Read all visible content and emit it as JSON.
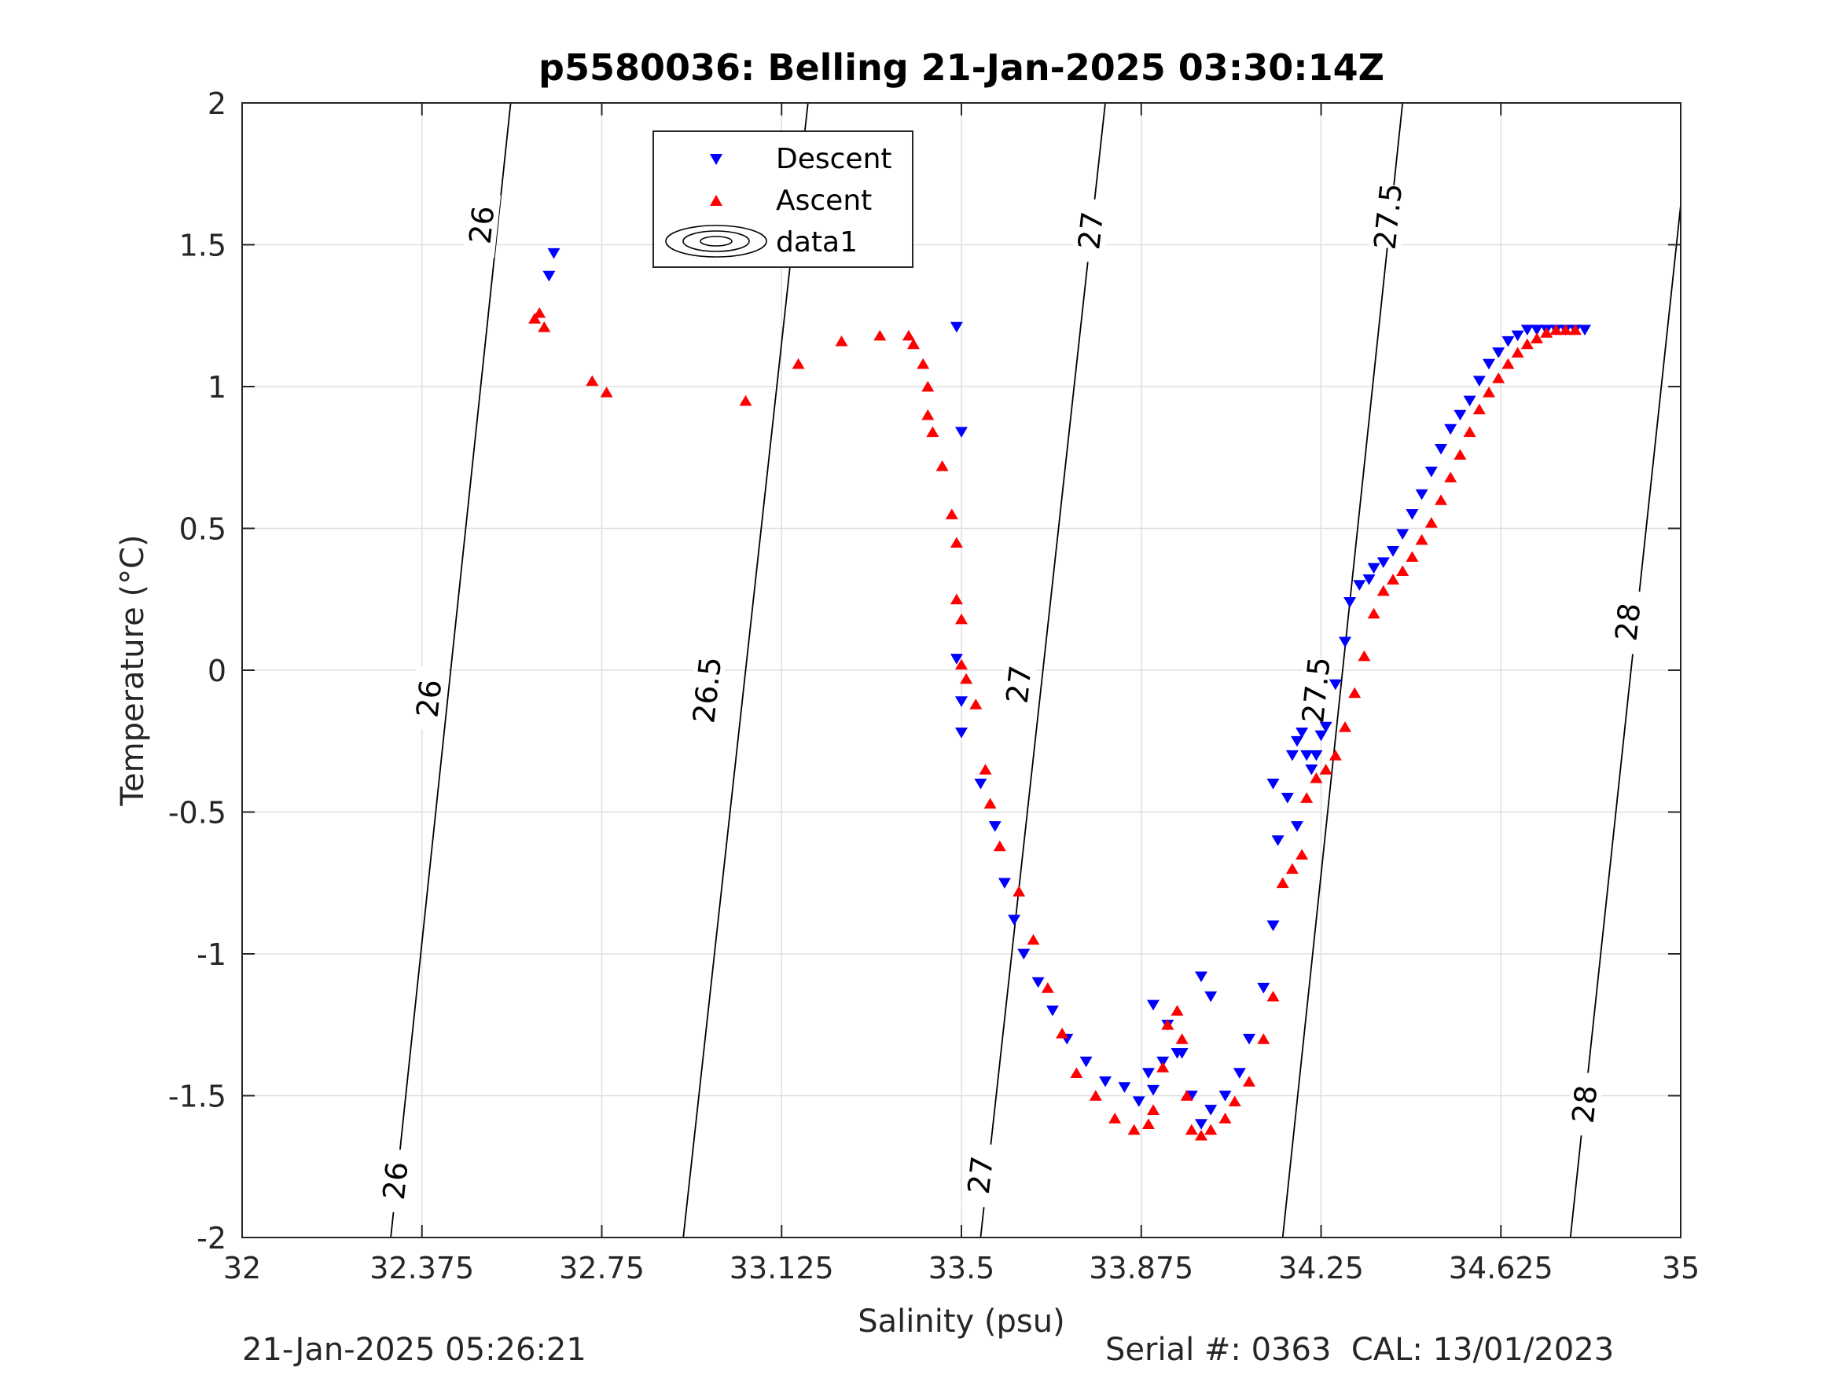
{
  "chart_data": {
    "type": "scatter",
    "title": "p5580036: Belling 21-Jan-2025 03:30:14Z",
    "xlabel": "Salinity (psu)",
    "ylabel": "Temperature (°C)",
    "xlim": [
      32,
      35
    ],
    "ylim": [
      -2,
      2
    ],
    "x_ticks": [
      32,
      32.375,
      32.75,
      33.125,
      33.5,
      33.875,
      34.25,
      34.625,
      35
    ],
    "x_tick_labels": [
      "32",
      "32.375",
      "32.75",
      "33.125",
      "33.5",
      "33.875",
      "34.25",
      "34.625",
      "35"
    ],
    "y_ticks": [
      -2,
      -1.5,
      -1,
      -0.5,
      0,
      0.5,
      1,
      1.5,
      2
    ],
    "y_tick_labels": [
      "-2",
      "-1.5",
      "-1",
      "-0.5",
      "0",
      "0.5",
      "1",
      "1.5",
      "2"
    ],
    "grid": true,
    "legend_position": "top-center",
    "legend": [
      "Descent",
      "Ascent",
      "data1"
    ],
    "colors": {
      "Descent": "#0000ff",
      "Ascent": "#ff0000",
      "contour": "#000000",
      "grid": "#dfdfdf"
    },
    "contours": [
      {
        "level": "26",
        "points": [
          [
            32.31,
            -2.0
          ],
          [
            32.56,
            2.0
          ]
        ],
        "labels": [
          [
            32.32,
            -1.8
          ],
          [
            32.39,
            -0.1
          ],
          [
            32.5,
            1.57
          ]
        ]
      },
      {
        "level": "26.5",
        "points": [
          [
            32.92,
            -2.0
          ],
          [
            33.18,
            2.0
          ]
        ],
        "labels": [
          [
            32.97,
            -0.07
          ],
          [
            33.13,
            1.6
          ]
        ]
      },
      {
        "level": "27",
        "points": [
          [
            33.54,
            -2.0
          ],
          [
            33.8,
            2.0
          ]
        ],
        "labels": [
          [
            33.54,
            -1.78
          ],
          [
            33.62,
            -0.05
          ],
          [
            33.77,
            1.55
          ]
        ]
      },
      {
        "level": "27.5",
        "points": [
          [
            34.17,
            -2.0
          ],
          [
            34.42,
            2.0
          ]
        ],
        "labels": [
          [
            34.24,
            -0.07
          ],
          [
            34.39,
            1.6
          ]
        ]
      },
      {
        "level": "28",
        "points": [
          [
            34.77,
            -2.0
          ],
          [
            35.0,
            1.64
          ]
        ],
        "labels": [
          [
            34.8,
            -1.53
          ],
          [
            34.89,
            0.17
          ]
        ]
      }
    ],
    "series": [
      {
        "name": "Descent",
        "marker": "triangle-down",
        "x": [
          32.65,
          32.64,
          33.49,
          33.5,
          33.49,
          33.5,
          33.5,
          33.54,
          33.57,
          33.59,
          33.61,
          33.63,
          33.66,
          33.69,
          33.72,
          33.76,
          33.8,
          33.84,
          33.87,
          33.9,
          33.89,
          33.92,
          33.95,
          33.98,
          34.0,
          34.02,
          34.05,
          34.08,
          34.1,
          34.13,
          34.15,
          34.16,
          34.18,
          34.19,
          34.2,
          34.21,
          34.22,
          34.23,
          34.24,
          34.26,
          34.28,
          34.3,
          34.31,
          34.33,
          34.35,
          34.36,
          34.38,
          34.4,
          34.42,
          34.44,
          34.46,
          34.48,
          34.5,
          34.52,
          34.54,
          34.56,
          34.58,
          34.6,
          34.62,
          34.64,
          34.66,
          34.68,
          34.7,
          34.72,
          34.74,
          34.76,
          34.78,
          34.8,
          33.9,
          33.93,
          33.96,
          34.0,
          34.02,
          34.15,
          34.2,
          34.25
        ],
        "y": [
          1.47,
          1.39,
          1.21,
          0.84,
          0.04,
          -0.11,
          -0.22,
          -0.4,
          -0.55,
          -0.75,
          -0.88,
          -1.0,
          -1.1,
          -1.2,
          -1.3,
          -1.38,
          -1.45,
          -1.47,
          -1.52,
          -1.48,
          -1.42,
          -1.38,
          -1.35,
          -1.5,
          -1.6,
          -1.55,
          -1.5,
          -1.42,
          -1.3,
          -1.12,
          -0.9,
          -0.6,
          -0.45,
          -0.3,
          -0.25,
          -0.22,
          -0.3,
          -0.35,
          -0.3,
          -0.2,
          -0.05,
          0.1,
          0.24,
          0.3,
          0.32,
          0.36,
          0.38,
          0.42,
          0.48,
          0.55,
          0.62,
          0.7,
          0.78,
          0.85,
          0.9,
          0.95,
          1.02,
          1.08,
          1.12,
          1.16,
          1.18,
          1.2,
          1.2,
          1.2,
          1.2,
          1.2,
          1.2,
          1.2,
          -1.18,
          -1.25,
          -1.35,
          -1.08,
          -1.15,
          -0.4,
          -0.55,
          -0.23
        ]
      },
      {
        "name": "Ascent",
        "marker": "triangle-up",
        "x": [
          32.61,
          32.62,
          32.63,
          32.73,
          32.76,
          33.05,
          33.16,
          33.25,
          33.33,
          33.39,
          33.4,
          33.42,
          33.43,
          33.43,
          33.44,
          33.46,
          33.48,
          33.49,
          33.49,
          33.5,
          33.5,
          33.51,
          33.53,
          33.55,
          33.56,
          33.58,
          33.62,
          33.65,
          33.68,
          33.71,
          33.74,
          33.78,
          33.82,
          33.86,
          33.89,
          33.9,
          33.92,
          33.93,
          33.95,
          33.96,
          33.97,
          33.98,
          34.0,
          34.02,
          34.05,
          34.07,
          34.1,
          34.13,
          34.15,
          34.17,
          34.19,
          34.21,
          34.22,
          34.24,
          34.26,
          34.28,
          34.3,
          34.32,
          34.34,
          34.36,
          34.38,
          34.4,
          34.42,
          34.44,
          34.46,
          34.48,
          34.5,
          34.52,
          34.54,
          34.56,
          34.58,
          34.6,
          34.62,
          34.64,
          34.66,
          34.68,
          34.7,
          34.72,
          34.74,
          34.76,
          34.78
        ],
        "y": [
          1.24,
          1.26,
          1.21,
          1.02,
          0.98,
          0.95,
          1.08,
          1.16,
          1.18,
          1.18,
          1.15,
          1.08,
          1.0,
          0.9,
          0.84,
          0.72,
          0.55,
          0.45,
          0.25,
          0.18,
          0.02,
          -0.03,
          -0.12,
          -0.35,
          -0.47,
          -0.62,
          -0.78,
          -0.95,
          -1.12,
          -1.28,
          -1.42,
          -1.5,
          -1.58,
          -1.62,
          -1.6,
          -1.55,
          -1.4,
          -1.25,
          -1.2,
          -1.3,
          -1.5,
          -1.62,
          -1.64,
          -1.62,
          -1.58,
          -1.52,
          -1.45,
          -1.3,
          -1.15,
          -0.75,
          -0.7,
          -0.65,
          -0.45,
          -0.38,
          -0.35,
          -0.3,
          -0.2,
          -0.08,
          0.05,
          0.2,
          0.28,
          0.32,
          0.35,
          0.4,
          0.46,
          0.52,
          0.6,
          0.68,
          0.76,
          0.84,
          0.92,
          0.98,
          1.03,
          1.08,
          1.12,
          1.15,
          1.17,
          1.19,
          1.2,
          1.2,
          1.2
        ]
      }
    ]
  },
  "footer": {
    "timestamp": "21-Jan-2025 05:26:21",
    "serial": "Serial #: 0363  CAL: 13/01/2023"
  }
}
